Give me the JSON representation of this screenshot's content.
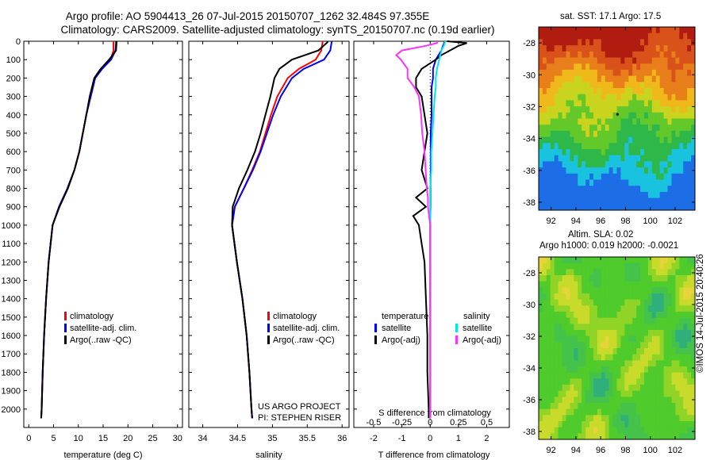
{
  "header": {
    "line1": "Argo profile: AO 5904413_26 07-Jul-2015 20150707_1262 32.484S 97.355E",
    "line2": "Climatology: CARS2009. Satellite-adjusted climatology: synTS_20150707.nc (0.19d earlier)"
  },
  "colors": {
    "climatology": "#ff0000",
    "satellite": "#0000ff",
    "argo": "#000000",
    "sal_satellite": "#00e5ee",
    "sal_argo": "#ff33ff"
  },
  "credits": {
    "project": "US ARGO PROJECT",
    "pi": "PI: STEPHEN RISER",
    "stamp": "©IMOS 14-Jul-2015 20:40:26"
  },
  "maps": {
    "sst": {
      "title": "sat. SST: 17.1 Argo: 17.5",
      "yticks": [
        "-28",
        "-30",
        "-32",
        "-34",
        "-36",
        "-38"
      ],
      "xticks": [
        "92",
        "94",
        "96",
        "98",
        "100",
        "102"
      ],
      "lat_range": [
        -38.5,
        -27
      ],
      "lon_range": [
        91,
        103.6
      ],
      "argo_position": {
        "lat": -32.484,
        "lon": 97.355
      }
    },
    "sla": {
      "title1": "Altim. SLA: 0.02",
      "title2": "Argo h1000: 0.019 h2000: -0.0021",
      "yticks": [
        "-28",
        "-30",
        "-32",
        "-34",
        "-36",
        "-38"
      ],
      "xticks": [
        "92",
        "94",
        "96",
        "98",
        "100",
        "102"
      ],
      "lat_range": [
        -38.5,
        -27
      ],
      "lon_range": [
        91,
        103.6
      ]
    }
  },
  "chart_data": [
    {
      "type": "line",
      "xlabel": "temperature (deg C)",
      "ylim": [
        2100,
        0
      ],
      "xlim": [
        -1,
        31
      ],
      "xticks": [
        "0",
        "5",
        "10",
        "15",
        "20",
        "25",
        "30"
      ],
      "yticks": [
        "0",
        "100",
        "200",
        "300",
        "400",
        "500",
        "600",
        "700",
        "800",
        "900",
        "1000",
        "1100",
        "1200",
        "1300",
        "1400",
        "1500",
        "1600",
        "1700",
        "1800",
        "1900",
        "2000"
      ],
      "legend": [
        "climatology",
        "satellite-adj. clim.",
        "Argo(..raw -QC)"
      ],
      "depth": [
        0,
        5,
        50,
        100,
        150,
        200,
        300,
        400,
        500,
        600,
        700,
        800,
        900,
        1000,
        1200,
        1400,
        1600,
        1800,
        2000,
        2050
      ],
      "series": [
        {
          "name": "climatology",
          "values": [
            17.1,
            17.1,
            17.1,
            16.5,
            14.7,
            13.3,
            12.4,
            11.6,
            10.9,
            10.2,
            9.2,
            7.8,
            6.1,
            4.8,
            4.0,
            3.5,
            3.1,
            2.8,
            2.6,
            2.5
          ]
        },
        {
          "name": "satellite-adj. clim.",
          "values": [
            17.6,
            17.6,
            17.5,
            16.6,
            14.8,
            13.4,
            12.5,
            11.6,
            10.9,
            10.2,
            9.2,
            7.8,
            6.1,
            4.8,
            4.0,
            3.5,
            3.1,
            2.8,
            2.6,
            2.5
          ]
        },
        {
          "name": "Argo(..raw -QC)",
          "values": [
            17.7,
            17.7,
            17.6,
            16.2,
            14.5,
            13.2,
            12.3,
            11.6,
            10.9,
            10.2,
            9.2,
            7.9,
            6.2,
            4.8,
            4.0,
            3.5,
            3.1,
            2.8,
            2.6,
            2.5
          ]
        }
      ]
    },
    {
      "type": "line",
      "xlabel": "salinity",
      "ylim": [
        2100,
        0
      ],
      "xlim": [
        33.8,
        36.1
      ],
      "xticks": [
        "34",
        "34.5",
        "35",
        "35.5",
        "36"
      ],
      "legend": [
        "climatology",
        "satellite-adj. clim.",
        "Argo(..raw -QC)"
      ],
      "depth": [
        0,
        5,
        50,
        100,
        150,
        200,
        300,
        400,
        500,
        600,
        700,
        800,
        900,
        1000,
        1200,
        1400,
        1600,
        1800,
        2000,
        2050
      ],
      "series": [
        {
          "name": "climatology",
          "values": [
            35.72,
            35.72,
            35.7,
            35.62,
            35.38,
            35.22,
            35.07,
            34.98,
            34.9,
            34.82,
            34.71,
            34.59,
            34.46,
            34.42,
            34.49,
            34.57,
            34.63,
            34.67,
            34.7,
            34.71
          ]
        },
        {
          "name": "satellite-adj. clim.",
          "values": [
            35.85,
            35.85,
            35.83,
            35.74,
            35.45,
            35.28,
            35.12,
            35.01,
            34.92,
            34.83,
            34.72,
            34.59,
            34.46,
            34.42,
            34.49,
            34.57,
            34.63,
            34.67,
            34.7,
            34.71
          ]
        },
        {
          "name": "Argo(..raw -QC)",
          "values": [
            35.79,
            35.79,
            35.66,
            35.28,
            35.1,
            35.03,
            34.97,
            34.9,
            34.83,
            34.75,
            34.64,
            34.52,
            34.43,
            34.42,
            34.49,
            34.57,
            34.63,
            34.67,
            34.7,
            34.71
          ]
        }
      ]
    },
    {
      "type": "line",
      "xlabel": "T difference from climatology",
      "xlabel_top": "S difference from climatology",
      "ylim": [
        2100,
        0
      ],
      "xlim": [
        -2.7,
        2.8
      ],
      "xticks": [
        "-2",
        "-1",
        "0",
        "1",
        "2"
      ],
      "xticks_top": [
        "-0.5",
        "-0.25",
        "0",
        "0.25",
        "0.5"
      ],
      "legend_temperature": {
        "title": "temperature",
        "items": [
          "satellite",
          "Argo(-adj)"
        ]
      },
      "legend_salinity": {
        "title": "salinity",
        "items": [
          "satellite",
          "Argo(-adj)"
        ]
      },
      "depth": [
        0,
        10,
        25,
        50,
        75,
        100,
        150,
        200,
        250,
        300,
        400,
        500,
        600,
        700,
        800,
        850,
        900,
        950,
        1000,
        1100,
        1200,
        1400,
        1600,
        1800,
        2000,
        2050
      ],
      "series": [
        {
          "name": "temperature satellite",
          "values": [
            0.5,
            0.5,
            0.45,
            0.4,
            0.3,
            0.2,
            0.1,
            0.1,
            0.05,
            0.05,
            0.05,
            0.02,
            0.02,
            0.02,
            0.01,
            0.01,
            0.01,
            0.0,
            0.0,
            0.0,
            0.0,
            0.0,
            0.0,
            0.0,
            0.0,
            0.0
          ]
        },
        {
          "name": "temperature Argo(-adj)",
          "values": [
            0.6,
            1.3,
            1.0,
            0.7,
            0.4,
            0.2,
            -0.3,
            -0.5,
            -0.5,
            -0.3,
            -0.2,
            -0.1,
            -0.2,
            -0.3,
            -0.1,
            -0.5,
            -0.15,
            -0.6,
            -0.4,
            -0.3,
            -0.2,
            -0.15,
            -0.1,
            -0.1,
            -0.05,
            -0.05
          ]
        },
        {
          "name": "salinity satellite",
          "values": [
            0.13,
            0.13,
            0.12,
            0.1,
            0.09,
            0.08,
            0.06,
            0.05,
            0.05,
            0.04,
            0.03,
            0.02,
            0.01,
            0.01,
            0.0,
            0.0,
            0.0,
            0.0,
            0.0,
            0.0,
            0.0,
            0.0,
            0.0,
            0.0,
            0.0,
            0.0
          ]
        },
        {
          "name": "salinity Argo(-adj)",
          "values": [
            0.06,
            0.06,
            -0.04,
            -0.25,
            -0.3,
            -0.26,
            -0.2,
            -0.2,
            -0.14,
            -0.1,
            -0.08,
            -0.07,
            -0.05,
            -0.04,
            -0.03,
            -0.02,
            -0.02,
            -0.01,
            0.0,
            0.0,
            0.0,
            0.0,
            0.0,
            0.0,
            0.0,
            0.0
          ]
        }
      ]
    }
  ]
}
